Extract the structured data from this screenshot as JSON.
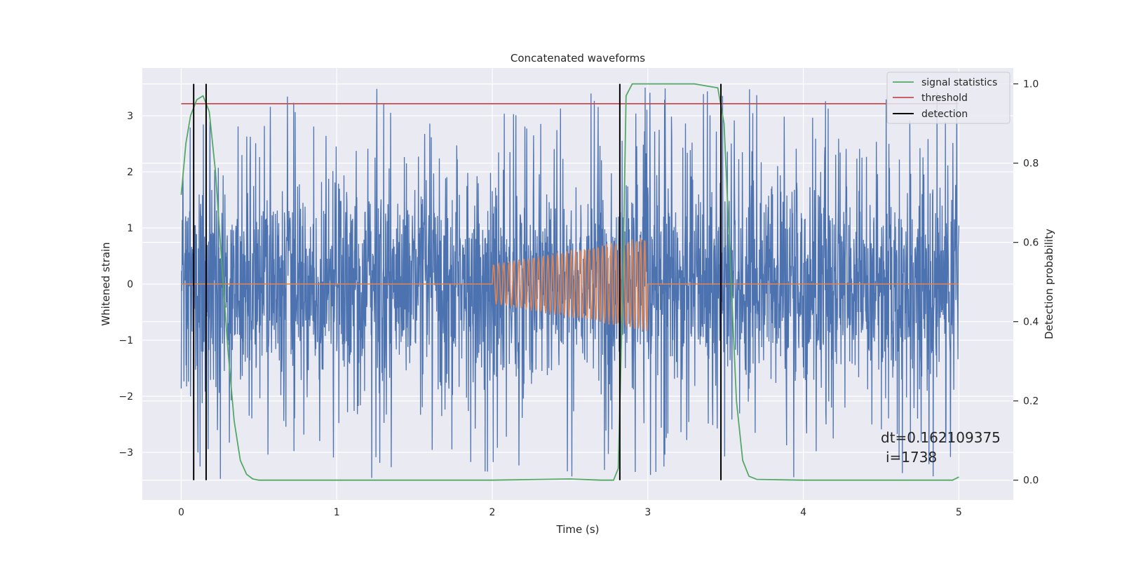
{
  "chart_data": {
    "type": "line",
    "title": "Concatenated waveforms",
    "xlabel": "Time (s)",
    "ylabel": "Whitened strain",
    "ylabel_right": "Detection probability",
    "xlim": [
      -0.25,
      5.35
    ],
    "ylim": [
      -3.85,
      3.85
    ],
    "ylim_right": [
      -0.05,
      1.04
    ],
    "x_ticks": [
      "0",
      "1",
      "2",
      "3",
      "4",
      "5"
    ],
    "y_ticks": [
      "−3",
      "−2",
      "−1",
      "0",
      "1",
      "2",
      "3"
    ],
    "y_right_ticks": [
      "0.0",
      "0.2",
      "0.4",
      "0.6",
      "0.8",
      "1.0"
    ],
    "x_tick_values": [
      0,
      1,
      2,
      3,
      4,
      5
    ],
    "y_tick_values": [
      -3,
      -2,
      -1,
      0,
      1,
      2,
      3
    ],
    "y_right_tick_values": [
      0.0,
      0.2,
      0.4,
      0.6,
      0.8,
      1.0
    ],
    "grid": true,
    "legend_position": "top-right",
    "legend": [
      "signal statistics",
      "threshold",
      "detection"
    ],
    "series": [
      {
        "name": "",
        "role": "whitened noise",
        "color": "#4c72b0",
        "x_range": [
          0,
          5
        ],
        "typical_amplitude": 1.3,
        "peak_amplitude": 3.5
      },
      {
        "name": "",
        "role": "injected chirp",
        "color": "#dd8452",
        "x_range": [
          0,
          5
        ],
        "chirp_start": 2.0,
        "chirp_end": 3.0,
        "amplitude_start": 0.35,
        "amplitude_end": 0.85
      },
      {
        "name": "signal statistics",
        "color": "#55a868",
        "axis": "right",
        "x": [
          0,
          0.03,
          0.06,
          0.1,
          0.14,
          0.18,
          0.22,
          0.26,
          0.3,
          0.34,
          0.38,
          0.42,
          0.46,
          0.5,
          1.0,
          2.0,
          2.5,
          2.7,
          2.78,
          2.81,
          2.84,
          2.86,
          2.9,
          3.0,
          3.3,
          3.45,
          3.49,
          3.53,
          3.57,
          3.61,
          3.65,
          3.7,
          4.0,
          4.5,
          4.96,
          5.0
        ],
        "y": [
          0.72,
          0.85,
          0.92,
          0.96,
          0.97,
          0.93,
          0.78,
          0.55,
          0.33,
          0.15,
          0.05,
          0.015,
          0.003,
          0.0,
          0.0,
          0.0,
          0.003,
          0.0,
          0.0,
          0.03,
          0.5,
          0.97,
          1.0,
          1.0,
          1.0,
          0.99,
          0.9,
          0.55,
          0.2,
          0.05,
          0.01,
          0.002,
          0.0,
          0.0,
          0.0,
          0.008
        ]
      },
      {
        "name": "threshold",
        "color": "#c44e52",
        "axis": "right",
        "x": [
          0,
          5
        ],
        "y": [
          0.95,
          0.95
        ]
      }
    ],
    "detections": {
      "name": "detection",
      "color": "#000000",
      "x": [
        0.08,
        0.16,
        2.82,
        3.47
      ],
      "y_range": [
        0.0,
        1.0
      ]
    },
    "annotation": {
      "line1": "dt=0.162109375",
      "line2": "i=1738"
    }
  }
}
